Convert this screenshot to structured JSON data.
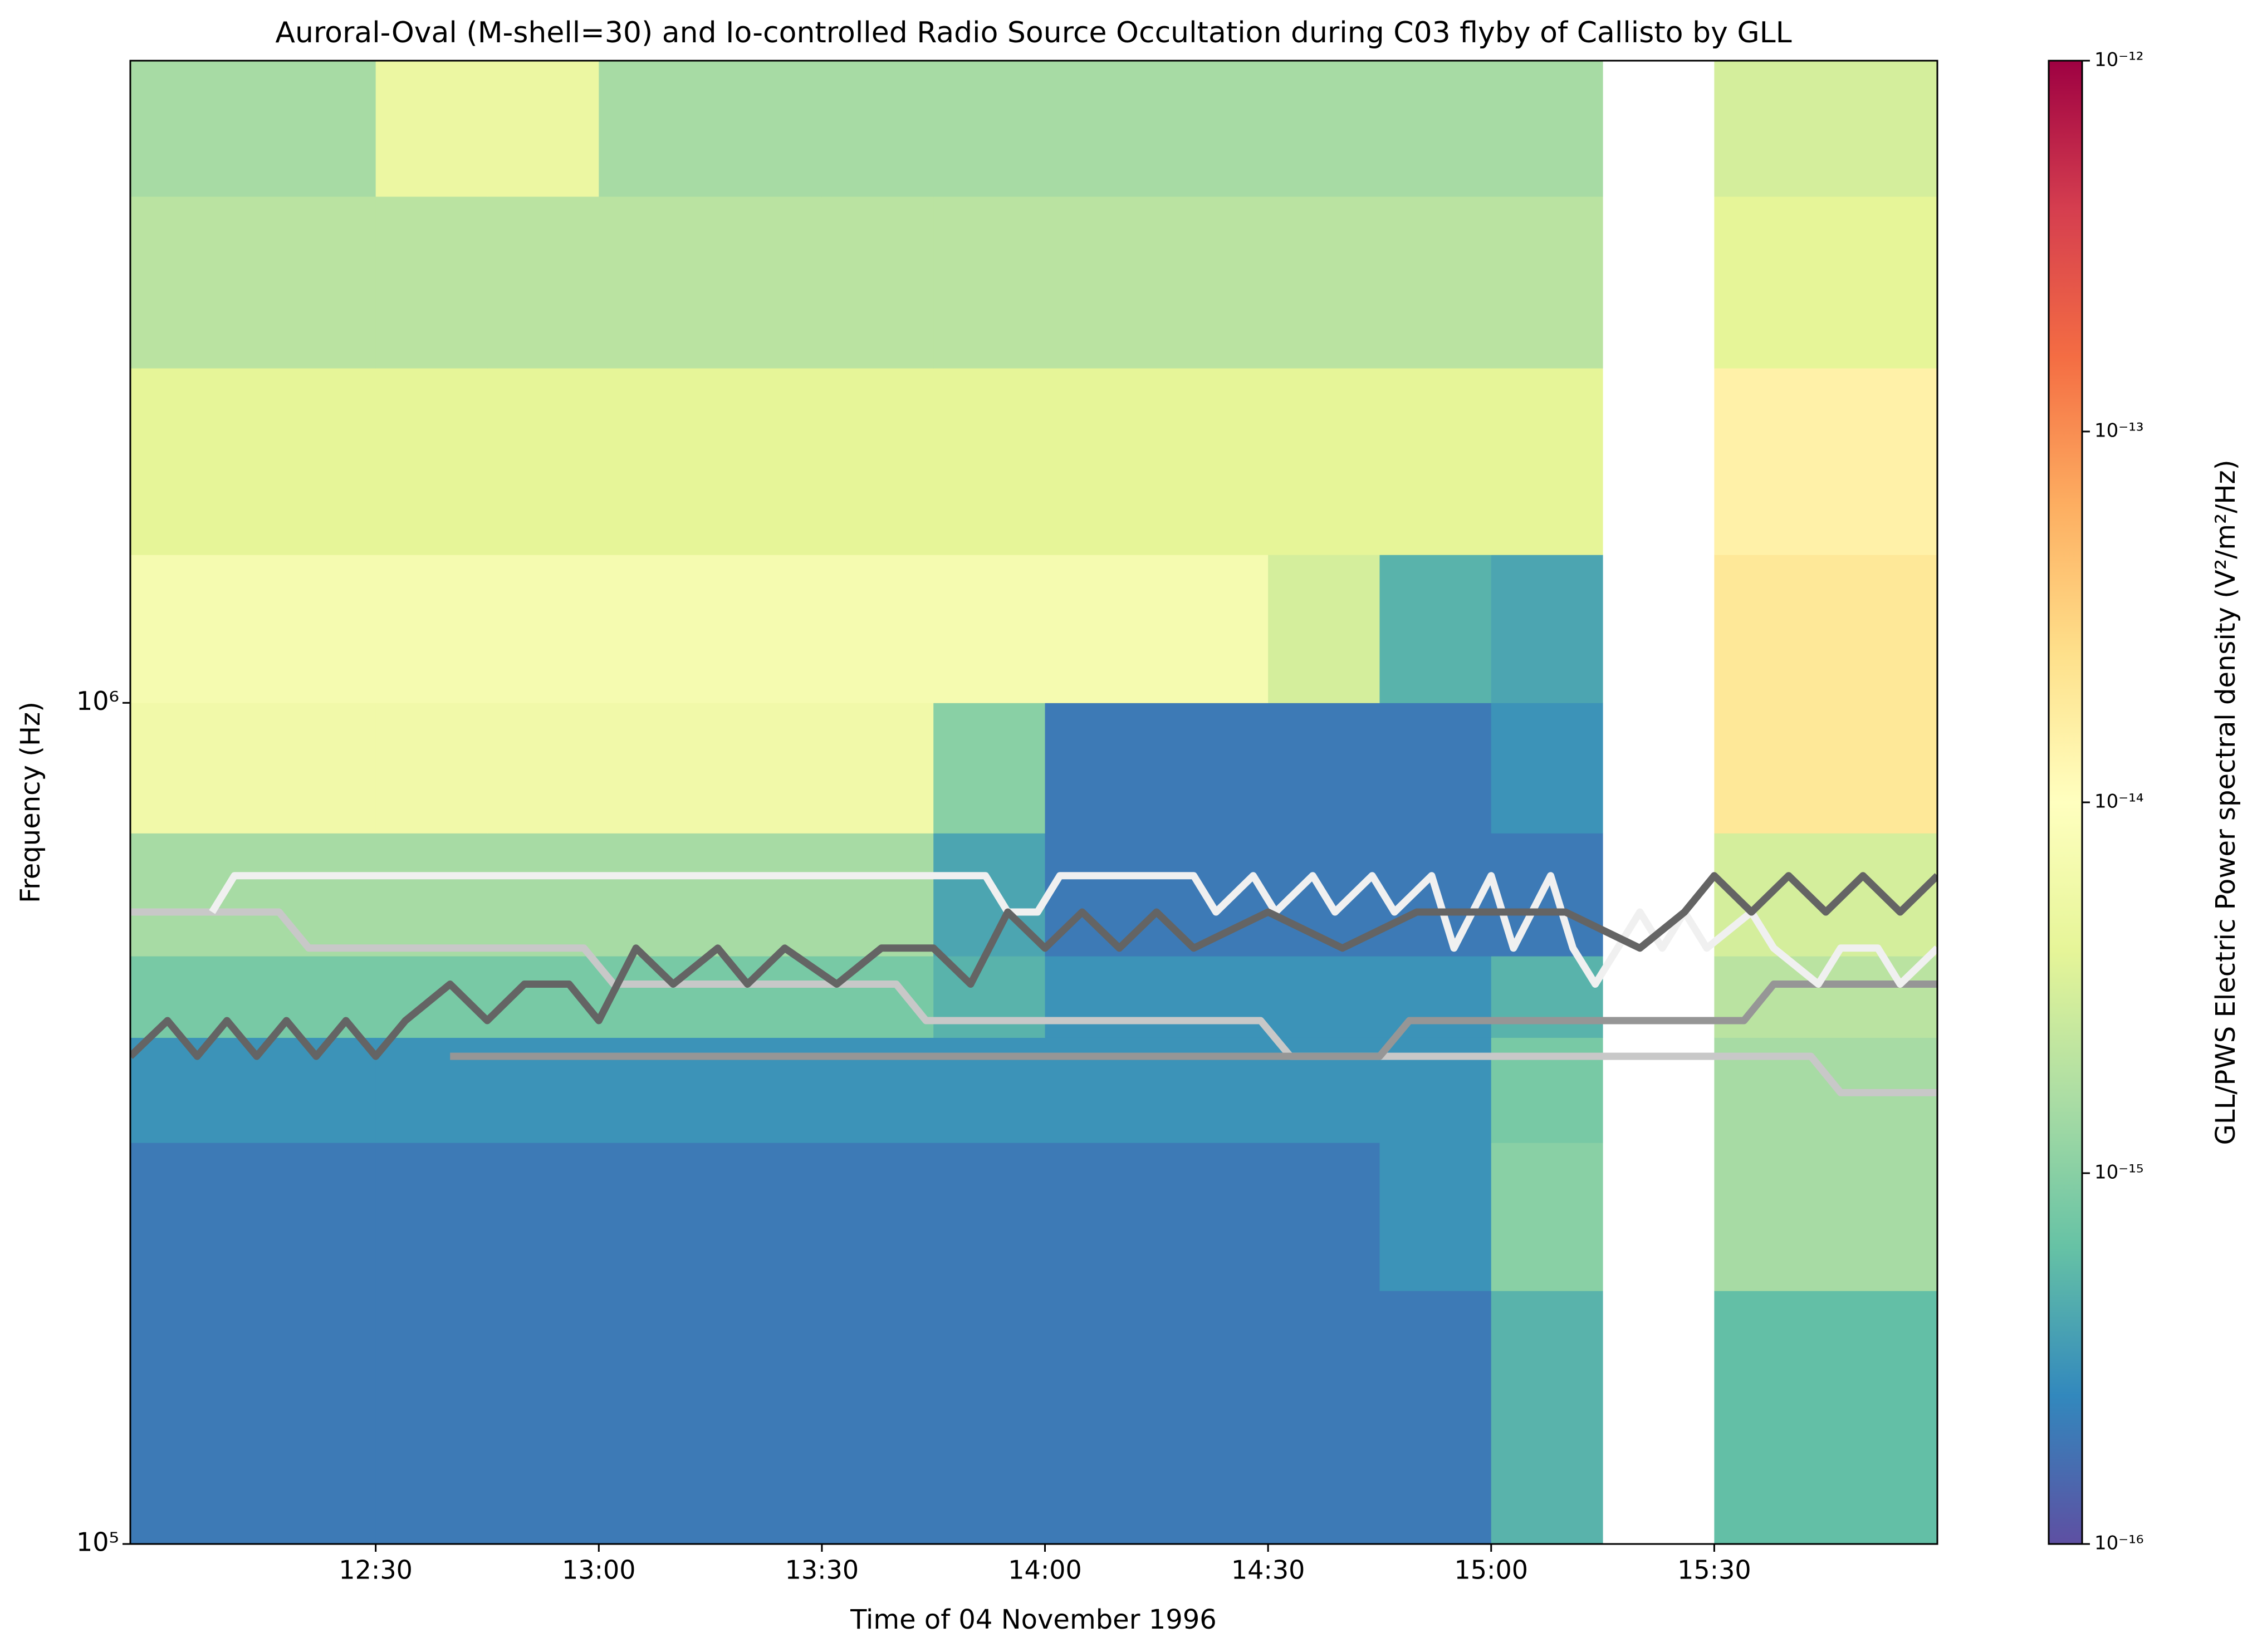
{
  "chart_data": {
    "type": "heatmap",
    "title": "Auroral-Oval (M-shell=30) and Io-controlled Radio Source Occultation during C03 flyby of Callisto by GLL",
    "x_label": "Time of 04 November 1996",
    "y_label": "Frequency (Hz)",
    "colorbar_label": "GLL/PWS Electric Power spectral density (V²/m²/Hz)",
    "xlim": [
      717,
      960
    ],
    "xticks": [
      {
        "value": 750,
        "label": "12:30"
      },
      {
        "value": 780,
        "label": "13:00"
      },
      {
        "value": 810,
        "label": "13:30"
      },
      {
        "value": 840,
        "label": "14:00"
      },
      {
        "value": 870,
        "label": "14:30"
      },
      {
        "value": 900,
        "label": "15:00"
      },
      {
        "value": 930,
        "label": "15:30"
      }
    ],
    "ylim": [
      100000,
      5800000
    ],
    "yticks": [
      {
        "value": 100000,
        "label": "10⁵"
      },
      {
        "value": 1000000,
        "label": "10⁶"
      }
    ],
    "y_log": true,
    "clim": [
      1e-16,
      1e-12
    ],
    "cticks": [
      {
        "value": 1e-16,
        "label": "10⁻¹⁶"
      },
      {
        "value": 1e-15,
        "label": "10⁻¹⁵"
      },
      {
        "value": 1e-14,
        "label": "10⁻¹⁴"
      },
      {
        "value": 1e-13,
        "label": "10⁻¹³"
      },
      {
        "value": 1e-12,
        "label": "10⁻¹²"
      }
    ],
    "colormap": [
      "#5e4fa2",
      "#3288bd",
      "#66c2a5",
      "#abdda4",
      "#e6f598",
      "#ffffbf",
      "#fee08b",
      "#fdae61",
      "#f46d43",
      "#d53e4f",
      "#9e0142"
    ],
    "heatmap": {
      "x_edges": [
        717,
        735,
        750,
        765,
        780,
        795,
        810,
        825,
        840,
        855,
        870,
        885,
        900,
        915,
        930,
        960
      ],
      "y_edges": [
        100000,
        200000,
        300000,
        400000,
        500000,
        700000,
        1000000,
        1500000,
        2500000,
        4000000,
        5800000
      ],
      "values": [
        [
          2e-16,
          2e-16,
          2e-16,
          2e-16,
          2e-16,
          2e-16,
          2e-16,
          2e-16,
          2e-16,
          2e-16,
          2e-16,
          2e-16,
          5e-16,
          null,
          6e-16
        ],
        [
          2e-16,
          2e-16,
          2e-16,
          2e-16,
          2e-16,
          2e-16,
          2e-16,
          2e-16,
          2e-16,
          2e-16,
          2e-16,
          3e-16,
          1e-15,
          null,
          1.5e-15
        ],
        [
          3e-16,
          3e-16,
          3e-16,
          3e-16,
          3e-16,
          3e-16,
          3e-16,
          3e-16,
          3e-16,
          3e-16,
          3e-16,
          3e-16,
          8e-16,
          null,
          1.5e-15
        ],
        [
          8e-16,
          8e-16,
          8e-16,
          8e-16,
          8e-16,
          8e-16,
          8e-16,
          5e-16,
          3e-16,
          3e-16,
          3e-16,
          3e-16,
          5e-16,
          null,
          2e-15
        ],
        [
          1.5e-15,
          1.5e-15,
          1.5e-15,
          1.5e-15,
          1.5e-15,
          1.5e-15,
          1.5e-15,
          4e-16,
          2e-16,
          2e-16,
          2e-16,
          2e-16,
          2e-16,
          null,
          3e-15
        ],
        [
          6e-15,
          6e-15,
          6e-15,
          6e-15,
          6e-15,
          6e-15,
          6e-15,
          1e-15,
          2e-16,
          2e-16,
          2e-16,
          2e-16,
          3e-16,
          null,
          2e-14
        ],
        [
          7e-15,
          7e-15,
          7e-15,
          7e-15,
          7e-15,
          7e-15,
          7e-15,
          7e-15,
          7e-15,
          7e-15,
          3e-15,
          5e-16,
          4e-16,
          null,
          2e-14
        ],
        [
          4e-15,
          4e-15,
          4e-15,
          4e-15,
          4e-15,
          4e-15,
          4e-15,
          4e-15,
          4e-15,
          4e-15,
          4e-15,
          4e-15,
          4e-15,
          null,
          1.5e-14
        ],
        [
          2e-15,
          2e-15,
          2e-15,
          2e-15,
          2e-15,
          2e-15,
          2e-15,
          2e-15,
          2e-15,
          2e-15,
          2e-15,
          2e-15,
          2e-15,
          null,
          4e-15
        ],
        [
          1.5e-15,
          1.5e-15,
          5e-15,
          5e-15,
          1.5e-15,
          1.5e-15,
          1.5e-15,
          1.5e-15,
          1.5e-15,
          1.5e-15,
          1.5e-15,
          1.5e-15,
          1.5e-15,
          null,
          3e-15
        ]
      ]
    },
    "series": [
      {
        "color": "#c8c8c8",
        "x": [
          717,
          737,
          741,
          778,
          782,
          820,
          824,
          869,
          873,
          943,
          947,
          960
        ],
        "values": [
          564000,
          564000,
          511000,
          511000,
          463000,
          463000,
          419000,
          419000,
          380000,
          380000,
          344000,
          344000
        ]
      },
      {
        "color": "#969696",
        "x": [
          760,
          885,
          889,
          934,
          938,
          960
        ],
        "values": [
          380000,
          380000,
          419000,
          419000,
          463000,
          463000
        ]
      },
      {
        "color": "#f0f0f0",
        "x": [
          728,
          731,
          832,
          835,
          839,
          842,
          860,
          863,
          868,
          871,
          876,
          879,
          884,
          887,
          892,
          895,
          900,
          903,
          908,
          911,
          914,
          917,
          920,
          923,
          926,
          929,
          935,
          938,
          944,
          947,
          952,
          955,
          960
        ],
        "values": [
          564000,
          623000,
          623000,
          564000,
          564000,
          623000,
          623000,
          564000,
          623000,
          564000,
          623000,
          564000,
          623000,
          564000,
          623000,
          511000,
          623000,
          511000,
          623000,
          511000,
          463000,
          511000,
          564000,
          511000,
          564000,
          511000,
          564000,
          511000,
          463000,
          511000,
          511000,
          463000,
          511000
        ]
      },
      {
        "color": "#646464",
        "x": [
          717,
          722,
          726,
          730,
          734,
          738,
          742,
          746,
          750,
          754,
          760,
          765,
          770,
          776,
          780,
          785,
          790,
          796,
          800,
          805,
          812,
          818,
          825,
          830,
          835,
          840,
          845,
          850,
          855,
          860,
          870,
          880,
          890,
          900,
          910,
          920,
          926,
          930,
          935,
          940,
          945,
          950,
          955,
          960
        ],
        "values": [
          380000,
          419000,
          380000,
          419000,
          380000,
          419000,
          380000,
          419000,
          380000,
          419000,
          463000,
          419000,
          463000,
          463000,
          419000,
          511000,
          463000,
          511000,
          463000,
          511000,
          463000,
          511000,
          511000,
          463000,
          564000,
          511000,
          564000,
          511000,
          564000,
          511000,
          564000,
          511000,
          564000,
          564000,
          564000,
          511000,
          564000,
          623000,
          564000,
          623000,
          564000,
          623000,
          564000,
          623000
        ]
      }
    ]
  }
}
